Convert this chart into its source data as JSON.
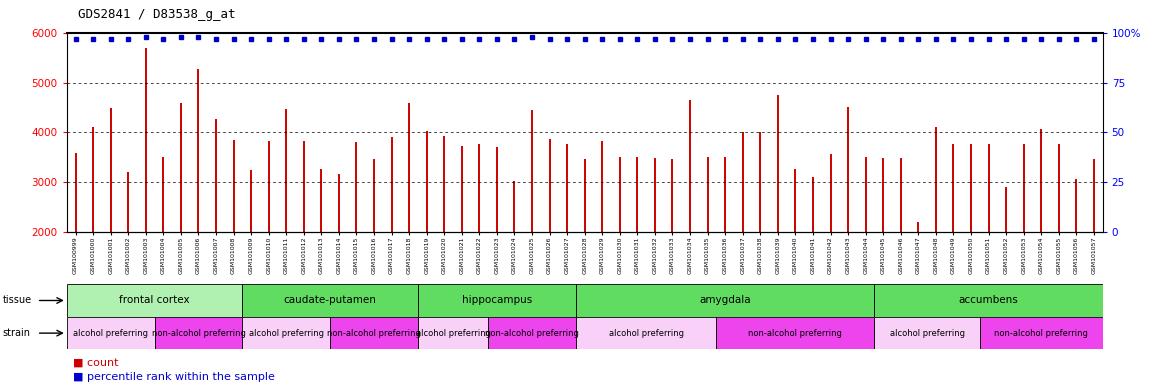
{
  "title": "GDS2841 / D83538_g_at",
  "samples": [
    "GSM100999",
    "GSM101000",
    "GSM101001",
    "GSM101002",
    "GSM101003",
    "GSM101004",
    "GSM101005",
    "GSM101006",
    "GSM101007",
    "GSM101008",
    "GSM101009",
    "GSM101010",
    "GSM101011",
    "GSM101012",
    "GSM101013",
    "GSM101014",
    "GSM101015",
    "GSM101016",
    "GSM101017",
    "GSM101018",
    "GSM101019",
    "GSM101020",
    "GSM101021",
    "GSM101022",
    "GSM101023",
    "GSM101024",
    "GSM101025",
    "GSM101026",
    "GSM101027",
    "GSM101028",
    "GSM101029",
    "GSM101030",
    "GSM101031",
    "GSM101032",
    "GSM101033",
    "GSM101034",
    "GSM101035",
    "GSM101036",
    "GSM101037",
    "GSM101038",
    "GSM101039",
    "GSM101040",
    "GSM101041",
    "GSM101042",
    "GSM101043",
    "GSM101044",
    "GSM101045",
    "GSM101046",
    "GSM101047",
    "GSM101048",
    "GSM101049",
    "GSM101050",
    "GSM101051",
    "GSM101052",
    "GSM101053",
    "GSM101054",
    "GSM101055",
    "GSM101056",
    "GSM101057"
  ],
  "counts": [
    3580,
    4100,
    4500,
    3200,
    5700,
    3500,
    4600,
    5280,
    4270,
    3850,
    3250,
    3820,
    4480,
    3830,
    3260,
    3170,
    3800,
    3460,
    3900,
    4600,
    4030,
    3920,
    3720,
    3760,
    3710,
    3020,
    4460,
    3870,
    3760,
    3460,
    3820,
    3510,
    3510,
    3480,
    3460,
    4660,
    3510,
    3510,
    4010,
    4010,
    4760,
    3260,
    3110,
    3560,
    4510,
    3510,
    3480,
    3480,
    2200,
    4110,
    3760,
    3760,
    3760,
    2910,
    3760,
    4060,
    3760,
    3060,
    3460
  ],
  "percentiles": [
    97,
    97,
    97,
    97,
    98,
    97,
    98,
    98,
    97,
    97,
    97,
    97,
    97,
    97,
    97,
    97,
    97,
    97,
    97,
    97,
    97,
    97,
    97,
    97,
    97,
    97,
    98,
    97,
    97,
    97,
    97,
    97,
    97,
    97,
    97,
    97,
    97,
    97,
    97,
    97,
    97,
    97,
    97,
    97,
    97,
    97,
    97,
    97,
    97,
    97,
    97,
    97,
    97,
    97,
    97,
    97,
    97,
    97,
    97
  ],
  "ylim_left": [
    2000,
    6000
  ],
  "ylim_right": [
    0,
    100
  ],
  "yticks_left": [
    2000,
    3000,
    4000,
    5000,
    6000
  ],
  "yticks_right": [
    0,
    25,
    50,
    75,
    100
  ],
  "bar_color": "#cc0000",
  "dot_color": "#0000cc",
  "tissue_groups": [
    {
      "label": "frontal cortex",
      "start": 0,
      "end": 10,
      "color": "#b0f0b0"
    },
    {
      "label": "caudate-putamen",
      "start": 10,
      "end": 20,
      "color": "#60dd60"
    },
    {
      "label": "hippocampus",
      "start": 20,
      "end": 29,
      "color": "#60dd60"
    },
    {
      "label": "amygdala",
      "start": 29,
      "end": 46,
      "color": "#60dd60"
    },
    {
      "label": "accumbens",
      "start": 46,
      "end": 59,
      "color": "#60dd60"
    }
  ],
  "strain_groups": [
    {
      "label": "alcohol preferring",
      "start": 0,
      "end": 5,
      "color": "#f8d0f8"
    },
    {
      "label": "non-alcohol preferring",
      "start": 5,
      "end": 10,
      "color": "#ee44ee"
    },
    {
      "label": "alcohol preferring",
      "start": 10,
      "end": 15,
      "color": "#f8d0f8"
    },
    {
      "label": "non-alcohol preferring",
      "start": 15,
      "end": 20,
      "color": "#ee44ee"
    },
    {
      "label": "alcohol preferring",
      "start": 20,
      "end": 24,
      "color": "#f8d0f8"
    },
    {
      "label": "non-alcohol preferring",
      "start": 24,
      "end": 29,
      "color": "#ee44ee"
    },
    {
      "label": "alcohol preferring",
      "start": 29,
      "end": 37,
      "color": "#f8d0f8"
    },
    {
      "label": "non-alcohol preferring",
      "start": 37,
      "end": 46,
      "color": "#ee44ee"
    },
    {
      "label": "alcohol preferring",
      "start": 46,
      "end": 52,
      "color": "#f8d0f8"
    },
    {
      "label": "non-alcohol preferring",
      "start": 52,
      "end": 59,
      "color": "#ee44ee"
    }
  ],
  "legend_count_color": "#cc0000",
  "legend_dot_color": "#0000cc",
  "background_color": "#ffffff"
}
